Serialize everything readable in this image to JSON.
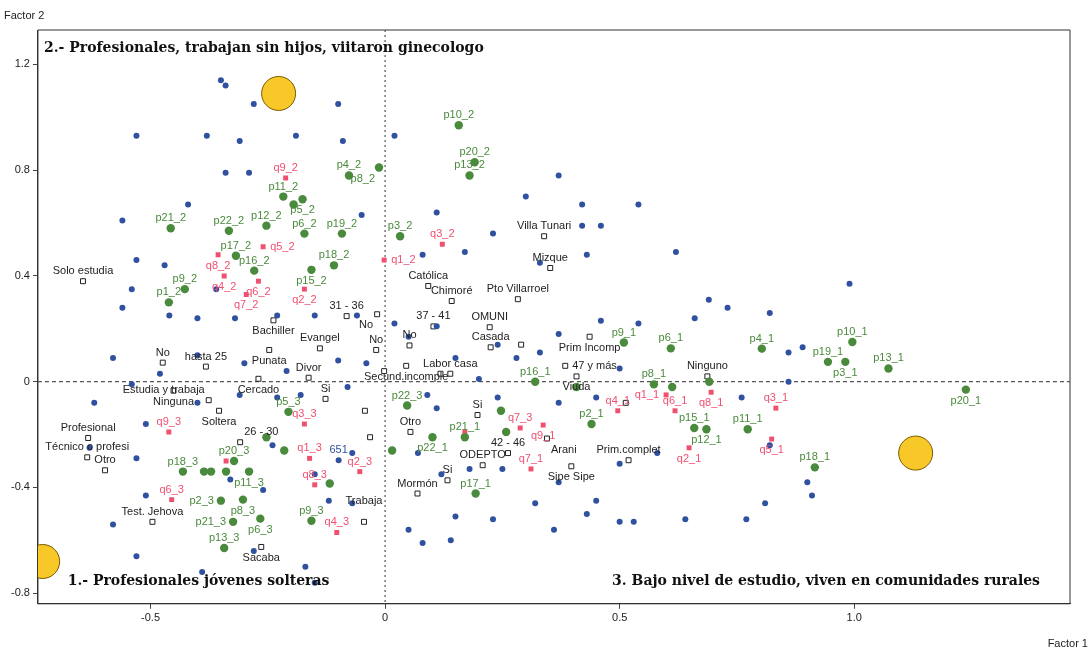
{
  "chart_data": {
    "type": "scatter",
    "xlabel": "Factor 1",
    "ylabel": "Factor 2",
    "xlim": [
      -0.74,
      1.46
    ],
    "ylim": [
      -0.84,
      1.33
    ],
    "xticks": [
      -0.5,
      0,
      0.5,
      {
        "value": 1,
        "label": "1.0"
      }
    ],
    "yticks": [
      -0.8,
      -0.4,
      0,
      0.4,
      0.8,
      1.2
    ],
    "grid": false,
    "legend": false,
    "ref_lines": [
      {
        "axis": "x",
        "value": 0,
        "color": "#555555",
        "line_style": "dotted"
      },
      {
        "axis": "y",
        "value": 0,
        "color": "#555555",
        "line_style": "dashed"
      }
    ],
    "series": [
      {
        "type": "scatter",
        "color": "#3050a0",
        "marker": "circle",
        "x": [
          -0.35,
          -0.34,
          -0.28,
          -0.1,
          -0.53,
          -0.38,
          -0.31,
          -0.09,
          -0.19,
          -0.34,
          -0.29,
          -0.42,
          -0.56,
          -0.05,
          0.02,
          0.11,
          0.37,
          0.3,
          0.42,
          0.54,
          0.23,
          0.42,
          0.46,
          0.08,
          0.17,
          0.33,
          0.43,
          0.62,
          -0.53,
          -0.47,
          -0.54,
          -0.36,
          -0.56,
          -0.46,
          -0.4,
          -0.32,
          -0.23,
          -0.15,
          -0.06,
          0.02,
          0.05,
          0.11,
          0.24,
          0.33,
          0.37,
          0.46,
          0.54,
          0.66,
          0.73,
          0.69,
          0.82,
          0.99,
          0.89,
          -0.58,
          -0.48,
          -0.4,
          -0.3,
          -0.21,
          -0.1,
          -0.04,
          0.15,
          0.2,
          0.28,
          0.5,
          0.86,
          -0.62,
          -0.54,
          -0.4,
          -0.31,
          -0.23,
          -0.18,
          -0.08,
          0.09,
          0.11,
          0.24,
          0.37,
          0.45,
          0.76,
          0.86,
          0.82,
          0.9,
          0.91,
          0.81,
          -0.63,
          -0.53,
          -0.51,
          -0.24,
          -0.15,
          -0.07,
          0.07,
          0.12,
          0.18,
          0.25,
          0.37,
          0.45,
          0.5,
          0.53,
          0.43,
          0.32,
          0.23,
          0.15,
          0.05,
          0.08,
          0.14,
          -0.58,
          -0.53,
          -0.39,
          -0.28,
          -0.17,
          -0.15,
          -0.51,
          -0.33,
          -0.26,
          -0.12,
          -0.07,
          0.36,
          0.64,
          0.77,
          0.5,
          0.58,
          -0.099
        ],
        "values": [
          1.14,
          1.12,
          1.05,
          1.05,
          0.93,
          0.93,
          0.91,
          0.91,
          0.93,
          0.79,
          0.79,
          0.67,
          0.61,
          0.63,
          0.93,
          0.64,
          0.78,
          0.7,
          0.67,
          0.67,
          0.56,
          0.59,
          0.59,
          0.48,
          0.49,
          0.45,
          0.48,
          0.49,
          0.46,
          0.44,
          0.35,
          0.35,
          0.28,
          0.25,
          0.24,
          0.24,
          0.25,
          0.25,
          0.25,
          0.22,
          0.17,
          0.21,
          0.14,
          0.11,
          0.18,
          0.23,
          0.22,
          0.24,
          0.28,
          0.31,
          0.26,
          0.37,
          0.13,
          0.09,
          0.03,
          0.1,
          0.07,
          0.04,
          0.08,
          0.07,
          0.09,
          0.01,
          0.09,
          0.05,
          0,
          -0.08,
          -0.01,
          -0.08,
          -0.05,
          -0.06,
          -0.05,
          -0.02,
          -0.05,
          -0.1,
          -0.06,
          -0.08,
          -0.06,
          -0.06,
          0.11,
          -0.24,
          -0.38,
          -0.43,
          -0.46,
          -0.25,
          -0.29,
          -0.16,
          -0.24,
          -0.35,
          -0.27,
          -0.27,
          -0.35,
          -0.33,
          -0.33,
          -0.38,
          -0.45,
          -0.53,
          -0.53,
          -0.5,
          -0.46,
          -0.52,
          -0.51,
          -0.56,
          -0.61,
          -0.6,
          -0.54,
          -0.66,
          -0.72,
          -0.64,
          -0.7,
          -0.76,
          -0.43,
          -0.37,
          -0.41,
          -0.45,
          -0.46,
          -0.56,
          -0.52,
          -0.52,
          -0.31,
          -0.27,
          -0.297
        ]
      },
      {
        "type": "scatter",
        "color": "#4a8a3c",
        "marker": "circle",
        "x": [
          0.157,
          0.191,
          0.18,
          -0.077,
          -0.013,
          -0.217,
          -0.176,
          -0.457,
          -0.333,
          -0.253,
          -0.172,
          -0.092,
          0.032,
          -0.109,
          -0.318,
          -0.279,
          -0.157,
          -0.427,
          -0.461,
          0.509,
          0.609,
          0.803,
          0.944,
          0.996,
          1.073,
          0.981,
          1.238,
          0.573,
          0.32,
          0.44,
          0.659,
          0.685,
          0.773,
          0.916,
          0.17,
          0.101,
          0.193,
          -0.206,
          0.047,
          -0.322,
          -0.29,
          -0.431,
          -0.303,
          -0.266,
          -0.157,
          -0.35,
          -0.324,
          -0.343,
          0.258,
          0.247,
          0.408,
          0.691,
          0.612,
          -0.195,
          0.015,
          -0.253,
          -0.215,
          -0.386,
          -0.371,
          -0.339,
          -0.118
        ],
        "values": [
          0.97,
          0.83,
          0.78,
          0.78,
          0.81,
          0.7,
          0.69,
          0.58,
          0.571,
          0.59,
          0.56,
          0.56,
          0.55,
          0.44,
          0.476,
          0.42,
          0.423,
          0.35,
          0.3,
          0.148,
          0.126,
          0.125,
          0.075,
          0.15,
          0.05,
          0.075,
          -0.03,
          -0.01,
          0,
          -0.16,
          -0.175,
          -0.18,
          -0.18,
          -0.324,
          -0.21,
          -0.21,
          -0.423,
          -0.114,
          -0.09,
          -0.3,
          -0.34,
          -0.34,
          -0.446,
          -0.518,
          -0.526,
          -0.45,
          -0.53,
          -0.629,
          -0.19,
          -0.11,
          -0.02,
          0,
          -0.02,
          0.67,
          -0.26,
          -0.21,
          -0.26,
          -0.34,
          -0.34,
          -0.34,
          -0.385
        ]
      },
      {
        "type": "scatter",
        "color": "#f05070",
        "marker": "square",
        "x": [
          -0.212,
          -0.356,
          -0.343,
          -0.296,
          -0.27,
          -0.26,
          -0.172,
          -0.002,
          0.122,
          -0.461,
          -0.172,
          -0.161,
          -0.054,
          -0.15,
          -0.103,
          -0.455,
          0.288,
          0.337,
          0.311,
          0.618,
          0.496,
          0.695,
          0.599,
          0.648,
          0.833,
          0.824,
          -0.339,
          0.17
        ],
        "values": [
          0.77,
          0.48,
          0.4,
          0.33,
          0.38,
          0.51,
          0.35,
          0.46,
          0.52,
          -0.19,
          -0.16,
          -0.29,
          -0.34,
          -0.39,
          -0.57,
          -0.446,
          -0.175,
          -0.164,
          -0.33,
          -0.11,
          -0.11,
          -0.04,
          -0.05,
          -0.25,
          -0.1,
          -0.217,
          -0.3,
          -0.19
        ]
      },
      {
        "type": "scatter",
        "color": "#222222",
        "marker": "square",
        "x": [
          -0.644,
          0.339,
          0.092,
          0.142,
          0.283,
          0.352,
          0.103,
          0.223,
          0.436,
          -0.238,
          -0.082,
          -0.017,
          -0.139,
          -0.019,
          0.052,
          0.225,
          -0.474,
          -0.382,
          -0.247,
          -0.27,
          -0.163,
          0.139,
          0.384,
          -0.451,
          0.045,
          0.408,
          0.687,
          -0.127,
          -0.376,
          -0.354,
          -0.633,
          -0.635,
          -0.309,
          0.197,
          0.054,
          0.345,
          0.208,
          0.262,
          0.519,
          0.133,
          0.397,
          0.069,
          -0.597,
          -0.496,
          -0.045,
          -0.264,
          -0.002,
          -0.043,
          -0.032,
          0.29,
          0.118,
          0.513
        ],
        "values": [
          0.38,
          0.55,
          0.362,
          0.305,
          0.312,
          0.43,
          0.209,
          0.206,
          0.17,
          0.232,
          0.248,
          0.255,
          0.126,
          0.12,
          0.137,
          0.13,
          0.072,
          0.057,
          0.12,
          0.011,
          0.015,
          0.03,
          0.06,
          -0.034,
          0.06,
          0.02,
          0.02,
          -0.065,
          -0.07,
          -0.11,
          -0.213,
          -0.286,
          -0.229,
          -0.126,
          -0.19,
          -0.215,
          -0.316,
          -0.27,
          -0.297,
          -0.373,
          -0.32,
          -0.423,
          -0.335,
          -0.53,
          -0.53,
          -0.625,
          0.04,
          -0.11,
          -0.21,
          0.14,
          0.03,
          -0.08
        ]
      },
      {
        "type": "bubble",
        "color": "#f8c828",
        "marker": "circle",
        "x": [
          -0.227,
          -0.73,
          1.131
        ],
        "values": [
          1.09,
          -0.68,
          -0.27
        ],
        "sizes": [
          1,
          1,
          1
        ]
      }
    ],
    "annotations": [
      "2.- Profesionales, trabajan sin hijos, viitaron ginecologo",
      "1.- Profesionales jóvenes solteras",
      "3. Bajo nivel de estudio, viven en comunidades rurales",
      {
        "text": "p10_2",
        "x": 0.157,
        "y": 0.97
      },
      {
        "text": "p20_2",
        "x": 0.191,
        "y": 0.83
      },
      {
        "text": "p13_2",
        "x": 0.18,
        "y": 0.78
      },
      {
        "text": "p4_2",
        "x": -0.077,
        "y": 0.78
      },
      {
        "text": "p8_2",
        "x": -0.013,
        "y": 0.81
      },
      {
        "text": "p11_2",
        "x": -0.217,
        "y": 0.7
      },
      {
        "text": "p5_2",
        "x": -0.176,
        "y": 0.69
      },
      {
        "text": "p21_2",
        "x": -0.457,
        "y": 0.58
      },
      {
        "text": "p22_2",
        "x": -0.333,
        "y": 0.571
      },
      {
        "text": "p12_2",
        "x": -0.253,
        "y": 0.59
      },
      {
        "text": "p6_2",
        "x": -0.172,
        "y": 0.56
      },
      {
        "text": "p19_2",
        "x": -0.092,
        "y": 0.56
      },
      {
        "text": "p3_2",
        "x": 0.032,
        "y": 0.55
      },
      {
        "text": "p18_2",
        "x": -0.109,
        "y": 0.44
      },
      {
        "text": "p17_2",
        "x": -0.318,
        "y": 0.476
      },
      {
        "text": "p16_2",
        "x": -0.279,
        "y": 0.42
      },
      {
        "text": "p15_2",
        "x": -0.157,
        "y": 0.423
      },
      {
        "text": "p9_2",
        "x": -0.427,
        "y": 0.35
      },
      {
        "text": "p1_2",
        "x": -0.461,
        "y": 0.3
      },
      {
        "text": "p9_1",
        "x": 0.509,
        "y": 0.148
      },
      {
        "text": "p6_1",
        "x": 0.609,
        "y": 0.126
      },
      {
        "text": "p4_1",
        "x": 0.803,
        "y": 0.125
      },
      {
        "text": "p19_1",
        "x": 0.944,
        "y": 0.075
      },
      {
        "text": "p10_1",
        "x": 0.996,
        "y": 0.15
      },
      {
        "text": "p13_1",
        "x": 1.073,
        "y": 0.05
      },
      {
        "text": "p3_1",
        "x": 0.981,
        "y": 0.075
      },
      {
        "text": "p20_1",
        "x": 1.238,
        "y": -0.03
      },
      {
        "text": "p8_1",
        "x": 0.573,
        "y": -0.01
      },
      {
        "text": "p16_1",
        "x": 0.32,
        "y": 0
      },
      {
        "text": "p2_1",
        "x": 0.44,
        "y": -0.16
      },
      {
        "text": "p15_1",
        "x": 0.659,
        "y": -0.175
      },
      {
        "text": "p12_1",
        "x": 0.685,
        "y": -0.18
      },
      {
        "text": "p11_1",
        "x": 0.773,
        "y": -0.18
      },
      {
        "text": "p18_1",
        "x": 0.916,
        "y": -0.324
      },
      {
        "text": "p21_1",
        "x": 0.17,
        "y": -0.21
      },
      {
        "text": "p22_1",
        "x": 0.101,
        "y": -0.21
      },
      {
        "text": "p17_1",
        "x": 0.193,
        "y": -0.423
      },
      {
        "text": "p5_3",
        "x": -0.206,
        "y": -0.114
      },
      {
        "text": "p22_3",
        "x": 0.047,
        "y": -0.09
      },
      {
        "text": "p20_3",
        "x": -0.322,
        "y": -0.3
      },
      {
        "text": "p11_3",
        "x": -0.29,
        "y": -0.34
      },
      {
        "text": "p18_3",
        "x": -0.431,
        "y": -0.34
      },
      {
        "text": "p8_3",
        "x": -0.303,
        "y": -0.446
      },
      {
        "text": "p6_3",
        "x": -0.266,
        "y": -0.518
      },
      {
        "text": "p9_3",
        "x": -0.157,
        "y": -0.526
      },
      {
        "text": "p2_3",
        "x": -0.35,
        "y": -0.45
      },
      {
        "text": "p21_3",
        "x": -0.324,
        "y": -0.53
      },
      {
        "text": "p13_3",
        "x": -0.343,
        "y": -0.629
      },
      {
        "text": "q9_2",
        "x": -0.212,
        "y": 0.77
      },
      {
        "text": "q8_2",
        "x": -0.356,
        "y": 0.48
      },
      {
        "text": "q4_2",
        "x": -0.343,
        "y": 0.4
      },
      {
        "text": "q7_2",
        "x": -0.296,
        "y": 0.33
      },
      {
        "text": "q6_2",
        "x": -0.27,
        "y": 0.38
      },
      {
        "text": "q5_2",
        "x": -0.26,
        "y": 0.51
      },
      {
        "text": "q2_2",
        "x": -0.172,
        "y": 0.35
      },
      {
        "text": "q1_2",
        "x": -0.002,
        "y": 0.46
      },
      {
        "text": "q3_2",
        "x": 0.122,
        "y": 0.52
      },
      {
        "text": "q9_3",
        "x": -0.461,
        "y": -0.19
      },
      {
        "text": "q3_3",
        "x": -0.172,
        "y": -0.16
      },
      {
        "text": "q1_3",
        "x": -0.161,
        "y": -0.29
      },
      {
        "text": "q2_3",
        "x": -0.054,
        "y": -0.34
      },
      {
        "text": "q8_3",
        "x": -0.15,
        "y": -0.39
      },
      {
        "text": "q4_3",
        "x": -0.103,
        "y": -0.57
      },
      {
        "text": "q6_3",
        "x": -0.455,
        "y": -0.446
      },
      {
        "text": "q7_3",
        "x": 0.288,
        "y": -0.175
      },
      {
        "text": "q9_1",
        "x": 0.337,
        "y": -0.164
      },
      {
        "text": "q7_1",
        "x": 0.311,
        "y": -0.33
      },
      {
        "text": "q6_1",
        "x": 0.618,
        "y": -0.11
      },
      {
        "text": "q4_1",
        "x": 0.496,
        "y": -0.11
      },
      {
        "text": "q8_1",
        "x": 0.695,
        "y": -0.04
      },
      {
        "text": "q1_1",
        "x": 0.599,
        "y": -0.05
      },
      {
        "text": "q2_1",
        "x": 0.648,
        "y": -0.25
      },
      {
        "text": "q3_1",
        "x": 0.833,
        "y": -0.1
      },
      {
        "text": "q5_1",
        "x": 0.824,
        "y": -0.217
      },
      {
        "text": "651",
        "x": -0.099,
        "y": -0.297
      },
      {
        "text": "Solo estudia",
        "x": -0.644,
        "y": 0.38
      },
      {
        "text": "Villa Tunari",
        "x": 0.339,
        "y": 0.55
      },
      {
        "text": "Católica",
        "x": 0.092,
        "y": 0.362
      },
      {
        "text": "Chimoré",
        "x": 0.142,
        "y": 0.305
      },
      {
        "text": "Pto Villarroel",
        "x": 0.283,
        "y": 0.312
      },
      {
        "text": "Mizque",
        "x": 0.352,
        "y": 0.43
      },
      {
        "text": "37 - 41",
        "x": 0.103,
        "y": 0.209
      },
      {
        "text": "OMUNI",
        "x": 0.223,
        "y": 0.206
      },
      {
        "text": "Prim Incomp",
        "x": 0.436,
        "y": 0.17
      },
      {
        "text": "Bachiller",
        "x": -0.238,
        "y": 0.232
      },
      {
        "text": "31 - 36",
        "x": -0.082,
        "y": 0.248
      },
      {
        "text": "No",
        "x": -0.017,
        "y": 0.255
      },
      {
        "text": "Evangel",
        "x": -0.139,
        "y": 0.126
      },
      {
        "text": "No",
        "x": -0.019,
        "y": 0.12
      },
      {
        "text": "No",
        "x": 0.052,
        "y": 0.137
      },
      {
        "text": "Casada",
        "x": 0.225,
        "y": 0.13
      },
      {
        "text": "No",
        "x": -0.474,
        "y": 0.072
      },
      {
        "text": "hasta 25",
        "x": -0.382,
        "y": 0.057
      },
      {
        "text": "Punata",
        "x": -0.247,
        "y": 0.12
      },
      {
        "text": "Cercado",
        "x": -0.27,
        "y": 0.011
      },
      {
        "text": "Divor",
        "x": -0.163,
        "y": 0.015
      },
      {
        "text": "Labor casa",
        "x": 0.139,
        "y": 0.03
      },
      {
        "text": "47 y más",
        "x": 0.384,
        "y": 0.06
      },
      {
        "text": "Ninguna",
        "x": -0.451,
        "y": -0.034
      },
      {
        "text": "Secund.incomple",
        "x": 0.045,
        "y": 0.06
      },
      {
        "text": "Viuda",
        "x": 0.408,
        "y": 0.02
      },
      {
        "text": "Ninguno",
        "x": 0.687,
        "y": 0.02
      },
      {
        "text": "Si",
        "x": -0.127,
        "y": -0.065
      },
      {
        "text": "Estudia y trabaja",
        "x": -0.376,
        "y": -0.07
      },
      {
        "text": "Soltera",
        "x": -0.354,
        "y": -0.11
      },
      {
        "text": "Profesional",
        "x": -0.633,
        "y": -0.213
      },
      {
        "text": "Técnico o profesi",
        "x": -0.635,
        "y": -0.286
      },
      {
        "text": "26 - 30",
        "x": -0.309,
        "y": -0.229
      },
      {
        "text": "Si",
        "x": 0.197,
        "y": -0.126
      },
      {
        "text": "Otro",
        "x": 0.054,
        "y": -0.19
      },
      {
        "text": "Arani",
        "x": 0.345,
        "y": -0.215
      },
      {
        "text": "ODEPTO",
        "x": 0.208,
        "y": -0.316
      },
      {
        "text": "42 - 46",
        "x": 0.262,
        "y": -0.27
      },
      {
        "text": "Prim.complet",
        "x": 0.519,
        "y": -0.297
      },
      {
        "text": "Si",
        "x": 0.133,
        "y": -0.373
      },
      {
        "text": "Sipe Sipe",
        "x": 0.397,
        "y": -0.32
      },
      {
        "text": "Mormón",
        "x": 0.069,
        "y": -0.423
      },
      {
        "text": "Otro",
        "x": -0.597,
        "y": -0.335
      },
      {
        "text": "Test. Jehova",
        "x": -0.496,
        "y": -0.53
      },
      {
        "text": "Trabaja",
        "x": -0.045,
        "y": -0.53
      },
      {
        "text": "Sacaba",
        "x": -0.264,
        "y": -0.625
      }
    ]
  }
}
